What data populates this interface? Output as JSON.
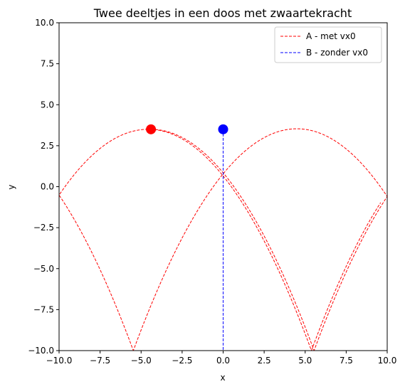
{
  "chart_data": {
    "type": "line",
    "title": "Twee deeltjes in een doos met zwaartekracht",
    "xlabel": "x",
    "ylabel": "y",
    "xlim": [
      -10,
      10
    ],
    "ylim": [
      -10,
      10
    ],
    "xticks": [
      -10,
      -7.5,
      -5,
      -2.5,
      0,
      2.5,
      5,
      7.5,
      10
    ],
    "yticks": [
      -10,
      -7.5,
      -5,
      -2.5,
      0,
      2.5,
      5,
      7.5,
      10
    ],
    "xtick_labels": [
      "−10.0",
      "−7.5",
      "−5.0",
      "−2.5",
      "0.0",
      "2.5",
      "5.0",
      "7.5",
      "10.0"
    ],
    "ytick_labels": [
      "−10.0",
      "−7.5",
      "−5.0",
      "−2.5",
      "0.0",
      "2.5",
      "5.0",
      "7.5",
      "10.0"
    ],
    "grid": false,
    "legend_position": "top-right",
    "series": [
      {
        "name": "A - met vx0",
        "color": "#ff0000",
        "linestyle": "dashed",
        "initial": {
          "x0": -4.4,
          "y0": 3.5,
          "vx": 6.0,
          "vy": 0.0
        },
        "physics": {
          "g": 9.81,
          "restitution": 1.0,
          "duration": 9.0
        },
        "marker": {
          "x": -4.4,
          "y": 3.5
        }
      },
      {
        "name": "B - zonder vx0",
        "color": "#0000ff",
        "linestyle": "dashed",
        "x": [
          0,
          0
        ],
        "y": [
          3.5,
          -10
        ],
        "marker": {
          "x": 0,
          "y": 3.5
        }
      }
    ]
  }
}
